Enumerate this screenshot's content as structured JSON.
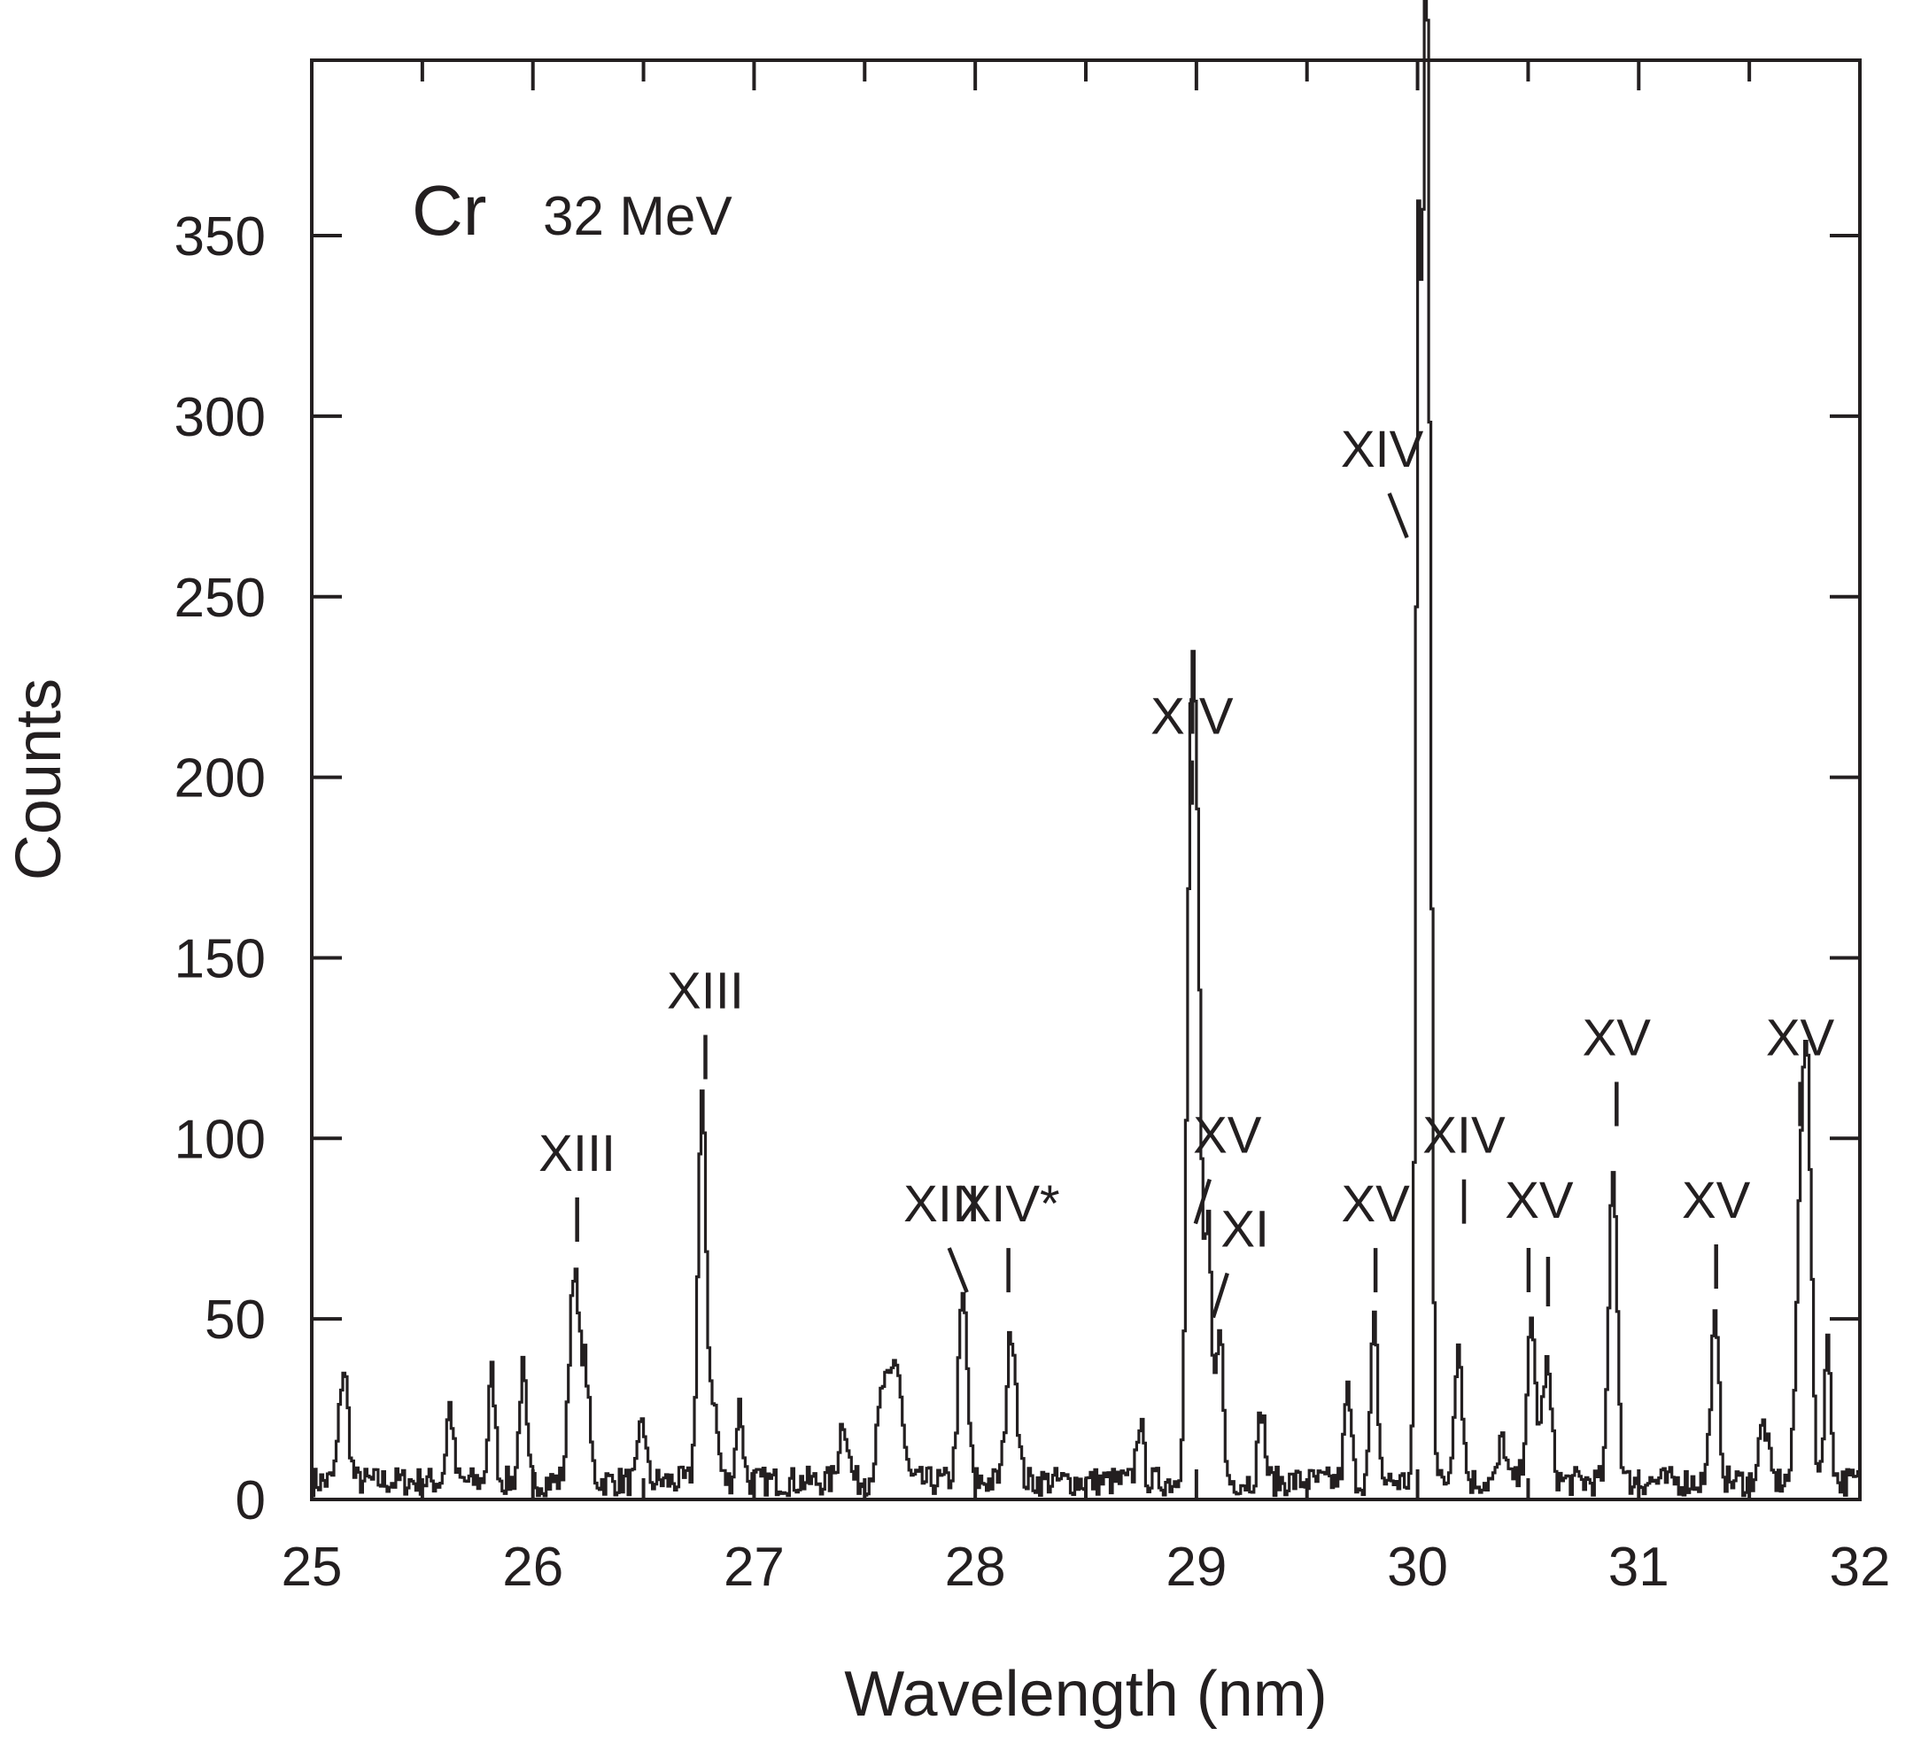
{
  "chart_data": {
    "type": "line",
    "title": "Cr",
    "subtitle": "32 MeV",
    "xlabel": "Wavelength (nm)",
    "ylabel": "Counts",
    "xlim": [
      25,
      32
    ],
    "ylim": [
      0,
      400
    ],
    "xticks": [
      25,
      26,
      27,
      28,
      29,
      30,
      31,
      32
    ],
    "yticks": [
      0,
      50,
      100,
      150,
      200,
      250,
      300,
      350
    ],
    "x_minor_step": 0.5,
    "grid": false,
    "line_color": "#231f20",
    "background": 5,
    "peaks": [
      {
        "x": 25.14,
        "y": 31,
        "w": 0.02
      },
      {
        "x": 25.62,
        "y": 21,
        "w": 0.015
      },
      {
        "x": 25.81,
        "y": 30,
        "w": 0.015
      },
      {
        "x": 25.95,
        "y": 31,
        "w": 0.015
      },
      {
        "x": 26.18,
        "y": 58,
        "w": 0.02
      },
      {
        "x": 26.23,
        "y": 32,
        "w": 0.02
      },
      {
        "x": 26.49,
        "y": 18,
        "w": 0.015
      },
      {
        "x": 26.76,
        "y": 105,
        "w": 0.018
      },
      {
        "x": 26.81,
        "y": 22,
        "w": 0.02
      },
      {
        "x": 26.93,
        "y": 21,
        "w": 0.015
      },
      {
        "x": 27.4,
        "y": 17,
        "w": 0.02
      },
      {
        "x": 27.58,
        "y": 25,
        "w": 0.025
      },
      {
        "x": 27.64,
        "y": 32,
        "w": 0.025
      },
      {
        "x": 27.94,
        "y": 51,
        "w": 0.02
      },
      {
        "x": 28.16,
        "y": 42,
        "w": 0.022
      },
      {
        "x": 28.74,
        "y": 17,
        "w": 0.015
      },
      {
        "x": 28.97,
        "y": 178,
        "w": 0.018
      },
      {
        "x": 29.0,
        "y": 140,
        "w": 0.018
      },
      {
        "x": 29.05,
        "y": 68,
        "w": 0.015
      },
      {
        "x": 29.1,
        "y": 45,
        "w": 0.015
      },
      {
        "x": 29.29,
        "y": 20,
        "w": 0.015
      },
      {
        "x": 29.68,
        "y": 25,
        "w": 0.015
      },
      {
        "x": 29.8,
        "y": 44,
        "w": 0.015
      },
      {
        "x": 30.0,
        "y": 340,
        "w": 0.012
      },
      {
        "x": 30.03,
        "y": 365,
        "w": 0.012
      },
      {
        "x": 30.05,
        "y": 205,
        "w": 0.012
      },
      {
        "x": 30.18,
        "y": 38,
        "w": 0.018
      },
      {
        "x": 30.38,
        "y": 12,
        "w": 0.015
      },
      {
        "x": 30.51,
        "y": 42,
        "w": 0.02
      },
      {
        "x": 30.58,
        "y": 32,
        "w": 0.02
      },
      {
        "x": 30.88,
        "y": 88,
        "w": 0.018
      },
      {
        "x": 31.34,
        "y": 44,
        "w": 0.018
      },
      {
        "x": 31.56,
        "y": 16,
        "w": 0.02
      },
      {
        "x": 31.73,
        "y": 78,
        "w": 0.02
      },
      {
        "x": 31.76,
        "y": 90,
        "w": 0.018
      },
      {
        "x": 31.85,
        "y": 38,
        "w": 0.015
      }
    ],
    "annotations": [
      {
        "label": "XIII",
        "x": 26.2,
        "y": 91,
        "tick": "vertical"
      },
      {
        "label": "XIII",
        "x": 26.78,
        "y": 136,
        "tick": "vertical"
      },
      {
        "label": "XIII",
        "x": 27.85,
        "y": 77,
        "tick": "backslash"
      },
      {
        "label": "XIV*",
        "x": 28.15,
        "y": 77,
        "tick": "vertical"
      },
      {
        "label": "XIV",
        "x": 28.98,
        "y": 212,
        "tick": "vertical"
      },
      {
        "label": "XV",
        "x": 29.14,
        "y": 96,
        "tick": "slash"
      },
      {
        "label": "XI",
        "x": 29.22,
        "y": 70,
        "tick": "slash"
      },
      {
        "label": "XV",
        "x": 29.81,
        "y": 77,
        "tick": "vertical"
      },
      {
        "label": "XIV",
        "x": 29.84,
        "y": 286,
        "tick": "backslash"
      },
      {
        "label": "XIV",
        "x": 30.21,
        "y": 96,
        "tick": "vertical"
      },
      {
        "label": "XV",
        "x": 30.55,
        "y": 78,
        "tick": "double"
      },
      {
        "label": "XV",
        "x": 30.9,
        "y": 123,
        "tick": "vertical"
      },
      {
        "label": "XV",
        "x": 31.35,
        "y": 78,
        "tick": "vertical"
      },
      {
        "label": "XV",
        "x": 31.73,
        "y": 123,
        "tick": "vertical"
      }
    ]
  }
}
